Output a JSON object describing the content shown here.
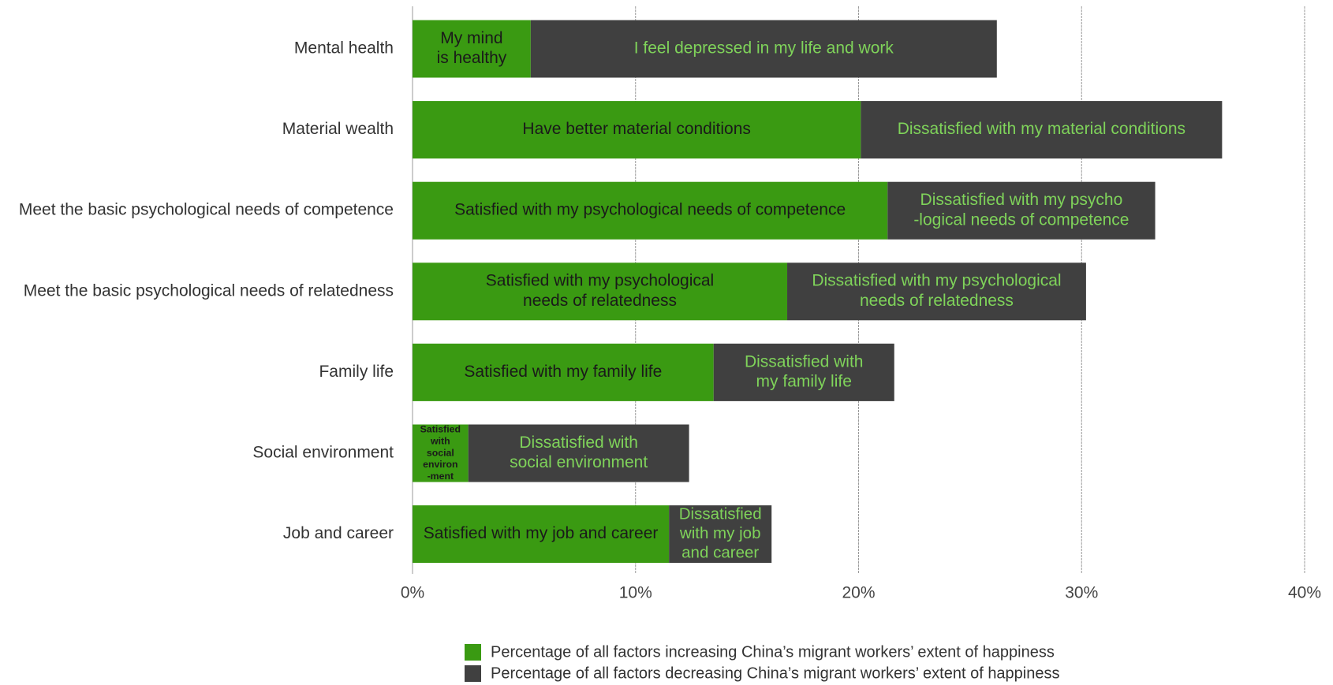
{
  "chart_data": {
    "type": "stacked-barh",
    "categories": [
      "Mental health",
      "Material wealth",
      "Meet the basic psychological needs of competence",
      "Meet the basic psychological needs of relatedness",
      "Family life",
      "Social environment",
      "Job and career"
    ],
    "series": [
      {
        "name": "Percentage of all factors increasing China’s migrant workers’ extent of happiness",
        "color": "#3a9a12",
        "label_color": "#1a1a1a",
        "values": [
          5.3,
          20.1,
          21.3,
          16.8,
          13.5,
          2.5,
          11.5
        ],
        "labels": [
          [
            "My mind",
            "is healthy"
          ],
          [
            "Have better material conditions"
          ],
          [
            "Satisfied with my psychological needs of competence"
          ],
          [
            "Satisfied with my psychological",
            "needs of relatedness"
          ],
          [
            "Satisfied with my family life"
          ],
          [
            "Satisfied",
            "with",
            "social",
            "environ",
            "-ment"
          ],
          [
            "Satisfied with my job and career"
          ]
        ]
      },
      {
        "name": "Percentage of all factors decreasing China’s migrant workers’ extent of happiness",
        "color": "#404040",
        "label_color": "#7fd35a",
        "values": [
          20.9,
          16.2,
          12.0,
          13.4,
          8.1,
          9.9,
          4.6
        ],
        "labels": [
          [
            "I feel depressed in my life and work"
          ],
          [
            "Dissatisfied with my material conditions"
          ],
          [
            "Dissatisfied with my psycho",
            "-logical needs of competence"
          ],
          [
            "Dissatisfied with my psychological",
            "needs of relatedness"
          ],
          [
            "Dissatisfied with",
            "my family life"
          ],
          [
            "Dissatisfied with",
            "social environment"
          ],
          [
            "Dissatisfied",
            "with my job",
            "and career"
          ]
        ]
      }
    ],
    "xlim": [
      0,
      40
    ],
    "xticks": [
      {
        "value": 0,
        "label": "0%"
      },
      {
        "value": 10,
        "label": "10%"
      },
      {
        "value": 20,
        "label": "20%"
      },
      {
        "value": 30,
        "label": "30%"
      },
      {
        "value": 40,
        "label": "40%"
      }
    ],
    "grid": true,
    "legend": "bottom"
  }
}
